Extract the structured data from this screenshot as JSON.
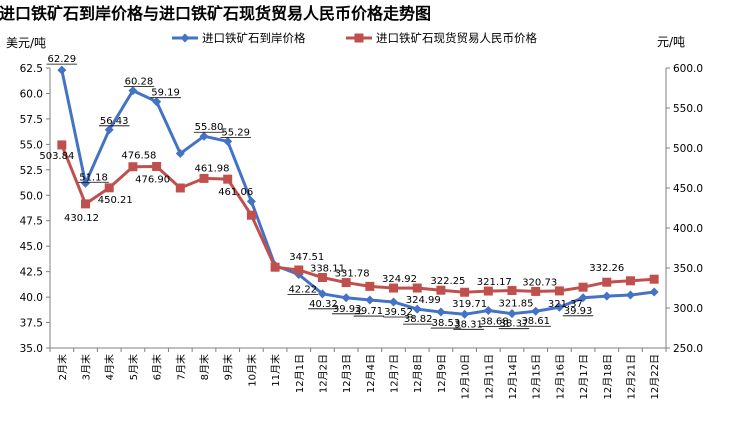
{
  "chart_data": {
    "type": "line",
    "title": "进口铁矿石到岸价格与进口铁矿石现货贸易人民币价格走势图",
    "left_unit": "美元/吨",
    "right_unit": "元/吨",
    "categories": [
      "2月末",
      "3月末",
      "4月末",
      "5月末",
      "6月末",
      "7月末",
      "8月末",
      "9月末",
      "10月末",
      "11月末",
      "12月1日",
      "12月2日",
      "12月3日",
      "12月4日",
      "12月7日",
      "12月8日",
      "12月9日",
      "12月10日",
      "12月11日",
      "12月14日",
      "12月15日",
      "12月16日",
      "12月17日",
      "12月18日",
      "12月21日",
      "12月22日"
    ],
    "series": [
      {
        "name": "进口铁矿石到岸价格",
        "axis": "left",
        "color": "#4472C4",
        "marker": "diamond",
        "values": [
          62.29,
          51.18,
          56.43,
          60.28,
          59.19,
          54.1,
          55.8,
          55.29,
          49.4,
          43.1,
          42.22,
          40.32,
          39.93,
          39.71,
          39.52,
          38.82,
          38.53,
          38.31,
          38.68,
          38.37,
          38.61,
          39.0,
          39.93,
          40.1,
          40.2,
          40.5
        ],
        "labels": [
          "62.29",
          "51.18",
          "56.43",
          "60.28",
          "59.19",
          "",
          "55.80",
          "55.29",
          "",
          "",
          "42.22",
          "40.32",
          "39.93",
          "39.71",
          "39.52",
          "38.82",
          "38.53",
          "38.31",
          "38.68",
          "38.37",
          "38.61",
          "",
          "39.93",
          "",
          "",
          ""
        ]
      },
      {
        "name": "进口铁矿石现货贸易人民币价格",
        "axis": "right",
        "color": "#C0504D",
        "marker": "square",
        "values": [
          503.84,
          430.12,
          450.21,
          476.58,
          476.9,
          450.0,
          461.98,
          461.06,
          416.0,
          351.0,
          347.51,
          338.11,
          331.78,
          327.0,
          324.92,
          324.99,
          322.25,
          319.71,
          321.17,
          321.85,
          320.73,
          321.37,
          326.0,
          332.26,
          334.0,
          336.0
        ],
        "labels": [
          "503.84",
          "430.12",
          "450.21",
          "476.58",
          "476.90",
          "",
          "461.98",
          "461.06",
          "",
          "",
          "347.51",
          "338.11",
          "331.78",
          "",
          "324.92",
          "324.99",
          "322.25",
          "319.71",
          "321.17",
          "321.85",
          "320.73",
          "321.37",
          "",
          "332.26",
          "",
          ""
        ]
      }
    ],
    "ylim_left": [
      35.0,
      62.5
    ],
    "yticks_left": [
      "35.0",
      "37.5",
      "40.0",
      "42.5",
      "45.0",
      "47.5",
      "50.0",
      "52.5",
      "55.0",
      "57.5",
      "60.0",
      "62.5"
    ],
    "ylim_right": [
      250.0,
      600.0
    ],
    "yticks_right": [
      "250.0",
      "300.0",
      "350.0",
      "400.0",
      "450.0",
      "500.0",
      "550.0",
      "600.0"
    ],
    "grid": false,
    "legend_position": "top"
  }
}
